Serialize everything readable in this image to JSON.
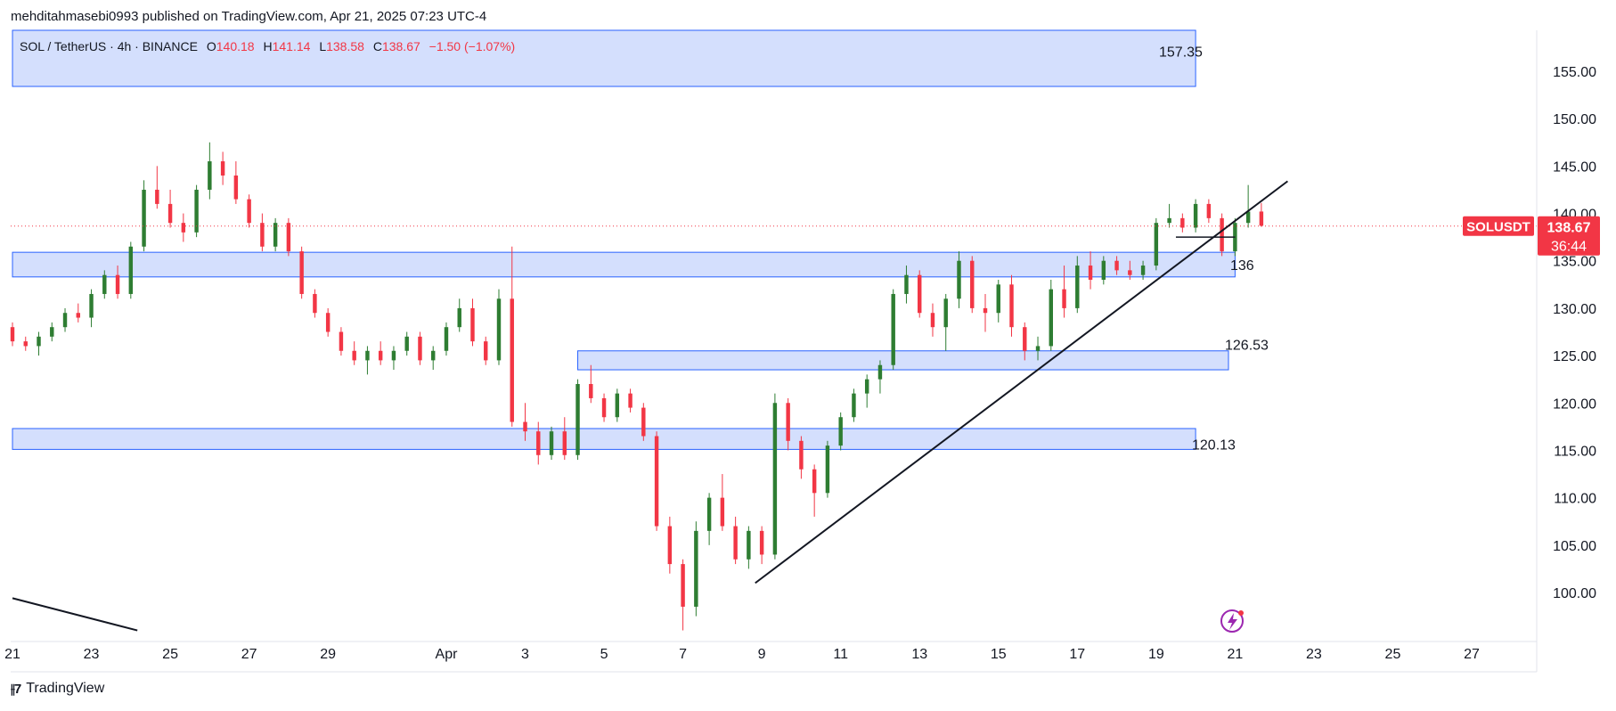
{
  "header": {
    "published": "mehditahmasebi0993 published on TradingView.com, Apr 21, 2025 07:23 UTC-4"
  },
  "legend": {
    "symbol": "SOL / TetherUS · 4h · BINANCE",
    "o_label": "O",
    "o": "140.18",
    "h_label": "H",
    "h": "141.14",
    "l_label": "L",
    "l": "138.58",
    "c_label": "C",
    "c": "138.67",
    "change": "−1.50 (−1.07%)"
  },
  "price_tag": {
    "symbol": "SOLUSDT",
    "price": "138.67",
    "countdown": "36:44"
  },
  "footer": {
    "brand": "TradingView"
  },
  "colors": {
    "up": "#22ab94",
    "up_body": "#2e7d32",
    "down": "#f23645",
    "zone_fill": "#d4dffd",
    "zone_stroke": "#2962ff"
  },
  "chart_data": {
    "type": "candlestick",
    "symbol": "SOLUSDT",
    "interval": "4h",
    "exchange": "BINANCE",
    "y_ticks": [
      100,
      105,
      110,
      115,
      120,
      125,
      130,
      135,
      140,
      145,
      150,
      155
    ],
    "y_tick_labels": [
      "100.00",
      "105.00",
      "110.00",
      "115.00",
      "120.00",
      "125.00",
      "130.00",
      "135.00",
      "140.00",
      "145.00",
      "150.00",
      "155.00"
    ],
    "x_ticks": [
      {
        "date": "2025-03-21",
        "label": "21"
      },
      {
        "date": "2025-03-23",
        "label": "23"
      },
      {
        "date": "2025-03-25",
        "label": "25"
      },
      {
        "date": "2025-03-27",
        "label": "27"
      },
      {
        "date": "2025-03-29",
        "label": "29"
      },
      {
        "date": "2025-04-01",
        "label": "Apr"
      },
      {
        "date": "2025-04-03",
        "label": "3"
      },
      {
        "date": "2025-04-05",
        "label": "5"
      },
      {
        "date": "2025-04-07",
        "label": "7"
      },
      {
        "date": "2025-04-09",
        "label": "9"
      },
      {
        "date": "2025-04-11",
        "label": "11"
      },
      {
        "date": "2025-04-13",
        "label": "13"
      },
      {
        "date": "2025-04-15",
        "label": "15"
      },
      {
        "date": "2025-04-17",
        "label": "17"
      },
      {
        "date": "2025-04-19",
        "label": "19"
      },
      {
        "date": "2025-04-21",
        "label": "21"
      },
      {
        "date": "2025-04-23",
        "label": "23"
      },
      {
        "date": "2025-04-25",
        "label": "25"
      },
      {
        "date": "2025-04-27",
        "label": "27"
      }
    ],
    "current_price": 138.67,
    "zones": [
      {
        "label": "157.35",
        "top": 160,
        "bottom": 153.4,
        "start": "2025-03-21",
        "end": "2025-04-20"
      },
      {
        "label": "136",
        "top": 135.9,
        "bottom": 133.3,
        "start": "2025-03-21",
        "end": "2025-04-21T00:00"
      },
      {
        "label": "126.53",
        "top": 125.5,
        "bottom": 123.5,
        "start": "2025-04-04T08:00",
        "end": "2025-04-20T20:00"
      },
      {
        "label": "120.13",
        "top": 117.3,
        "bottom": 115.1,
        "start": "2025-03-21",
        "end": "2025-04-20T00:00"
      }
    ],
    "trendlines": [
      {
        "from": {
          "date": "2025-04-08T20:00",
          "price": 101
        },
        "to": {
          "date": "2025-04-22T08:00",
          "price": 143.4
        }
      },
      {
        "from": {
          "date": "2025-03-21",
          "price": 99.4
        },
        "to": {
          "date": "2025-03-24T04:00",
          "price": 96
        }
      }
    ],
    "hline": {
      "from": "2025-04-19T12:00",
      "to": "2025-04-21T00:00",
      "price": 137.5
    },
    "candles": [
      [
        "2025-03-21T00:00",
        128.0,
        128.5,
        126.0,
        126.5
      ],
      [
        "2025-03-21T08:00",
        126.5,
        127.0,
        125.5,
        126.0
      ],
      [
        "2025-03-21T16:00",
        126.0,
        127.5,
        125.0,
        127.0
      ],
      [
        "2025-03-22T00:00",
        127.0,
        128.5,
        126.5,
        128.0
      ],
      [
        "2025-03-22T08:00",
        128.0,
        130.0,
        127.5,
        129.5
      ],
      [
        "2025-03-22T16:00",
        129.5,
        130.5,
        128.5,
        129.0
      ],
      [
        "2025-03-23T00:00",
        129.0,
        132.0,
        128.0,
        131.5
      ],
      [
        "2025-03-23T08:00",
        131.5,
        134.0,
        131.0,
        133.5
      ],
      [
        "2025-03-23T16:00",
        133.5,
        134.5,
        131.0,
        131.5
      ],
      [
        "2025-03-24T00:00",
        131.5,
        137.0,
        131.0,
        136.5
      ],
      [
        "2025-03-24T08:00",
        136.5,
        143.5,
        136.0,
        142.5
      ],
      [
        "2025-03-24T16:00",
        142.5,
        145.0,
        140.5,
        141.0
      ],
      [
        "2025-03-25T00:00",
        141.0,
        142.5,
        138.5,
        139.0
      ],
      [
        "2025-03-25T08:00",
        139.0,
        140.0,
        137.0,
        138.0
      ],
      [
        "2025-03-25T16:00",
        138.0,
        143.0,
        137.5,
        142.5
      ],
      [
        "2025-03-26T00:00",
        142.5,
        147.5,
        141.5,
        145.5
      ],
      [
        "2025-03-26T08:00",
        145.5,
        146.5,
        143.0,
        144.0
      ],
      [
        "2025-03-26T16:00",
        144.0,
        145.5,
        141.0,
        141.5
      ],
      [
        "2025-03-27T00:00",
        141.5,
        142.0,
        138.5,
        139.0
      ],
      [
        "2025-03-27T08:00",
        139.0,
        140.0,
        136.0,
        136.5
      ],
      [
        "2025-03-27T16:00",
        136.5,
        139.5,
        136.0,
        139.0
      ],
      [
        "2025-03-28T00:00",
        139.0,
        139.5,
        135.5,
        136.0
      ],
      [
        "2025-03-28T08:00",
        136.0,
        136.5,
        131.0,
        131.5
      ],
      [
        "2025-03-28T16:00",
        131.5,
        132.0,
        129.0,
        129.5
      ],
      [
        "2025-03-29T00:00",
        129.5,
        130.0,
        127.0,
        127.5
      ],
      [
        "2025-03-29T08:00",
        127.5,
        128.0,
        125.0,
        125.5
      ],
      [
        "2025-03-29T16:00",
        125.5,
        126.5,
        124.0,
        124.5
      ],
      [
        "2025-03-30T00:00",
        124.5,
        126.0,
        123.0,
        125.5
      ],
      [
        "2025-03-30T08:00",
        125.5,
        126.5,
        124.0,
        124.5
      ],
      [
        "2025-03-30T16:00",
        124.5,
        126.0,
        123.5,
        125.5
      ],
      [
        "2025-03-31T00:00",
        125.5,
        127.5,
        125.0,
        127.0
      ],
      [
        "2025-03-31T08:00",
        127.0,
        127.5,
        124.0,
        124.5
      ],
      [
        "2025-03-31T16:00",
        124.5,
        126.0,
        123.5,
        125.5
      ],
      [
        "2025-04-01T00:00",
        125.5,
        128.5,
        125.0,
        128.0
      ],
      [
        "2025-04-01T08:00",
        128.0,
        131.0,
        127.5,
        130.0
      ],
      [
        "2025-04-01T16:00",
        130.0,
        131.0,
        126.0,
        126.5
      ],
      [
        "2025-04-02T00:00",
        126.5,
        127.0,
        124.0,
        124.5
      ],
      [
        "2025-04-02T08:00",
        124.5,
        132.0,
        124.0,
        131.0
      ],
      [
        "2025-04-02T16:00",
        131.0,
        136.5,
        117.5,
        118.0
      ],
      [
        "2025-04-03T00:00",
        118.0,
        120.0,
        116.0,
        117.0
      ],
      [
        "2025-04-03T08:00",
        117.0,
        118.0,
        113.5,
        114.5
      ],
      [
        "2025-04-03T16:00",
        114.5,
        117.5,
        114.0,
        117.0
      ],
      [
        "2025-04-04T00:00",
        117.0,
        118.5,
        114.0,
        114.5
      ],
      [
        "2025-04-04T08:00",
        114.5,
        122.5,
        114.0,
        122.0
      ],
      [
        "2025-04-04T16:00",
        122.0,
        124.0,
        120.0,
        120.5
      ],
      [
        "2025-04-05T00:00",
        120.5,
        121.0,
        118.0,
        118.5
      ],
      [
        "2025-04-05T08:00",
        118.5,
        121.5,
        118.0,
        121.0
      ],
      [
        "2025-04-05T16:00",
        121.0,
        121.5,
        119.0,
        119.5
      ],
      [
        "2025-04-06T00:00",
        119.5,
        120.0,
        116.0,
        116.5
      ],
      [
        "2025-04-06T08:00",
        116.5,
        117.0,
        106.5,
        107.0
      ],
      [
        "2025-04-06T16:00",
        107.0,
        108.0,
        102.0,
        103.0
      ],
      [
        "2025-04-07T00:00",
        103.0,
        103.5,
        96.0,
        98.5
      ],
      [
        "2025-04-07T08:00",
        98.5,
        107.5,
        97.5,
        106.5
      ],
      [
        "2025-04-07T16:00",
        106.5,
        110.5,
        105.0,
        110.0
      ],
      [
        "2025-04-08T00:00",
        110.0,
        112.5,
        106.5,
        107.0
      ],
      [
        "2025-04-08T08:00",
        107.0,
        108.0,
        103.0,
        103.5
      ],
      [
        "2025-04-08T16:00",
        103.5,
        107.0,
        102.5,
        106.5
      ],
      [
        "2025-04-09T00:00",
        106.5,
        107.0,
        103.0,
        104.0
      ],
      [
        "2025-04-09T08:00",
        104.0,
        121.0,
        103.5,
        120.0
      ],
      [
        "2025-04-09T16:00",
        120.0,
        120.5,
        115.0,
        116.0
      ],
      [
        "2025-04-10T00:00",
        116.0,
        116.5,
        112.0,
        113.0
      ],
      [
        "2025-04-10T08:00",
        113.0,
        113.5,
        108.0,
        110.5
      ],
      [
        "2025-04-10T16:00",
        110.5,
        116.0,
        110.0,
        115.5
      ],
      [
        "2025-04-11T00:00",
        115.5,
        119.0,
        115.0,
        118.5
      ],
      [
        "2025-04-11T08:00",
        118.5,
        121.5,
        118.0,
        121.0
      ],
      [
        "2025-04-11T16:00",
        121.0,
        123.0,
        119.5,
        122.5
      ],
      [
        "2025-04-12T00:00",
        122.5,
        124.5,
        121.0,
        124.0
      ],
      [
        "2025-04-12T08:00",
        124.0,
        132.0,
        123.5,
        131.5
      ],
      [
        "2025-04-12T16:00",
        131.5,
        134.5,
        130.5,
        133.5
      ],
      [
        "2025-04-13T00:00",
        133.5,
        134.0,
        129.0,
        129.5
      ],
      [
        "2025-04-13T08:00",
        129.5,
        130.5,
        127.0,
        128.0
      ],
      [
        "2025-04-13T16:00",
        128.0,
        131.5,
        125.5,
        131.0
      ],
      [
        "2025-04-14T00:00",
        131.0,
        136.0,
        130.0,
        135.0
      ],
      [
        "2025-04-14T08:00",
        135.0,
        135.5,
        129.5,
        130.0
      ],
      [
        "2025-04-14T16:00",
        130.0,
        131.5,
        127.5,
        129.5
      ],
      [
        "2025-04-15T00:00",
        129.5,
        133.0,
        128.5,
        132.5
      ],
      [
        "2025-04-15T08:00",
        132.5,
        133.5,
        127.0,
        128.0
      ],
      [
        "2025-04-15T16:00",
        128.0,
        128.5,
        124.5,
        125.5
      ],
      [
        "2025-04-16T00:00",
        125.5,
        127.0,
        124.5,
        126.0
      ],
      [
        "2025-04-16T08:00",
        126.0,
        133.0,
        125.5,
        132.0
      ],
      [
        "2025-04-16T16:00",
        132.0,
        134.5,
        129.0,
        130.0
      ],
      [
        "2025-04-17T00:00",
        130.0,
        135.5,
        129.5,
        134.5
      ],
      [
        "2025-04-17T08:00",
        134.5,
        136.0,
        132.0,
        133.0
      ],
      [
        "2025-04-17T16:00",
        133.0,
        135.5,
        132.5,
        135.0
      ],
      [
        "2025-04-18T00:00",
        135.0,
        135.5,
        133.5,
        134.0
      ],
      [
        "2025-04-18T08:00",
        134.0,
        135.0,
        133.0,
        133.5
      ],
      [
        "2025-04-18T16:00",
        133.5,
        135.0,
        133.0,
        134.5
      ],
      [
        "2025-04-19T00:00",
        134.5,
        139.5,
        134.0,
        139.0
      ],
      [
        "2025-04-19T08:00",
        139.0,
        141.0,
        138.5,
        139.5
      ],
      [
        "2025-04-19T16:00",
        139.5,
        140.0,
        138.0,
        138.5
      ],
      [
        "2025-04-20T00:00",
        138.5,
        141.5,
        138.0,
        141.0
      ],
      [
        "2025-04-20T08:00",
        141.0,
        141.5,
        139.0,
        139.5
      ],
      [
        "2025-04-20T16:00",
        139.5,
        140.0,
        135.5,
        136.0
      ],
      [
        "2025-04-21T00:00",
        136.0,
        139.5,
        135.5,
        139.0
      ],
      [
        "2025-04-21T08:00",
        139.0,
        143.0,
        138.5,
        140.2
      ],
      [
        "2025-04-21T16:00",
        140.2,
        141.1,
        138.6,
        138.7
      ]
    ]
  }
}
